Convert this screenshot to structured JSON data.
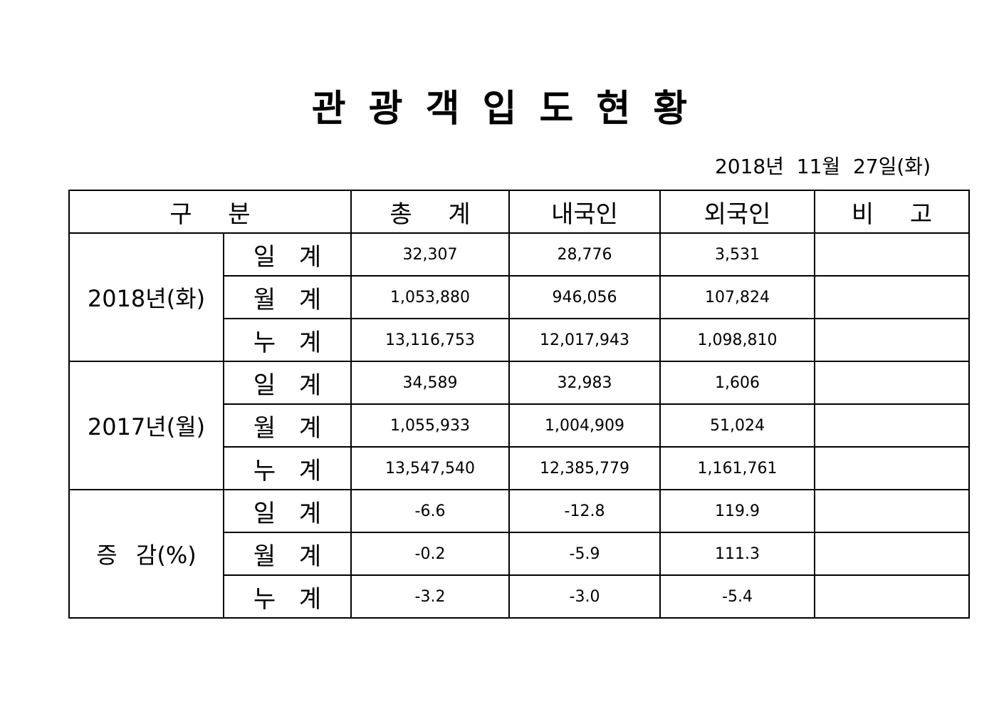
{
  "header": {
    "title": "관 광 객 입 도 현 황",
    "date": "2018년  11월  27일(화)"
  },
  "table": {
    "columns": [
      "구 분",
      "총 계",
      "내국인",
      "외국인",
      "비 고"
    ],
    "groups": [
      {
        "label": "2018년(화)",
        "rows": [
          {
            "label": "일 계",
            "values": [
              "32,307",
              "28,776",
              "3,531"
            ]
          },
          {
            "label": "월 계",
            "values": [
              "1,053,880",
              "946,056",
              "107,824"
            ]
          },
          {
            "label": "누 계",
            "values": [
              "13,116,753",
              "12,017,943",
              "1,098,810"
            ]
          }
        ]
      },
      {
        "label": "2017년(월)",
        "rows": [
          {
            "label": "일 계",
            "values": [
              "34,589",
              "32,983",
              "1,606"
            ]
          },
          {
            "label": "월 계",
            "values": [
              "1,055,933",
              "1,004,909",
              "51,024"
            ]
          },
          {
            "label": "누 계",
            "values": [
              "13,547,540",
              "12,385,779",
              "1,161,761"
            ]
          }
        ]
      },
      {
        "label": "증 감(%)",
        "rows": [
          {
            "label": "일 계",
            "values": [
              "-6.6",
              "-12.8",
              "119.9"
            ]
          },
          {
            "label": "월 계",
            "values": [
              "-0.2",
              "-5.9",
              "111.3"
            ]
          },
          {
            "label": "누 계",
            "values": [
              "-3.2",
              "-3.0",
              "-5.4"
            ]
          }
        ]
      }
    ]
  }
}
